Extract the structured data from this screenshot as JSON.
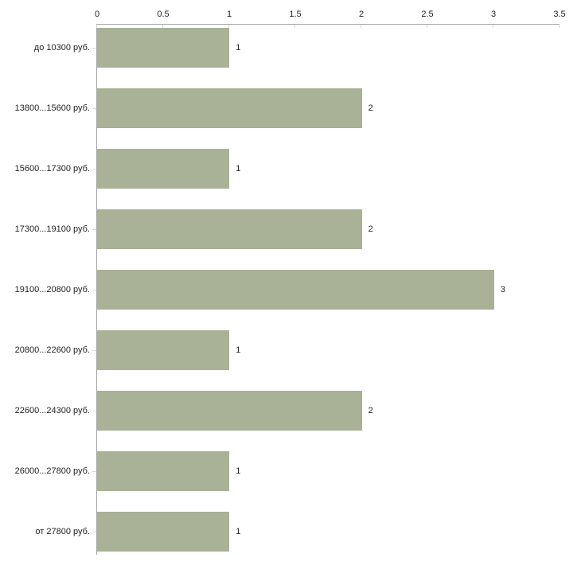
{
  "chart_data": {
    "type": "bar",
    "orientation": "horizontal",
    "title": "",
    "xlabel": "",
    "ylabel": "",
    "categories": [
      "до 10300 руб.",
      "13800...15600 руб.",
      "15600...17300 руб.",
      "17300...19100 руб.",
      "19100...20800 руб.",
      "20800...22600 руб.",
      "22600...24300 руб.",
      "26000...27800 руб.",
      "от 27800 руб."
    ],
    "values": [
      1,
      2,
      1,
      2,
      3,
      1,
      2,
      1,
      1
    ],
    "value_labels": [
      "1",
      "2",
      "1",
      "2",
      "3",
      "1",
      "2",
      "1",
      "1"
    ],
    "x_axis": {
      "position": "top",
      "range": [
        0,
        3.5
      ],
      "ticks": [
        0,
        0.5,
        1,
        1.5,
        2,
        2.5,
        3,
        3.5
      ],
      "tick_labels": [
        "0",
        "0.5",
        "1",
        "1.5",
        "2",
        "2.5",
        "3",
        "3.5"
      ]
    },
    "grid": false,
    "legend": false,
    "colors": {
      "bar": "#a9b196",
      "axis_line": "#a6a6a6",
      "tick_mark": "#d8dbc6",
      "text": "#222222",
      "background": "#ffffff"
    }
  }
}
